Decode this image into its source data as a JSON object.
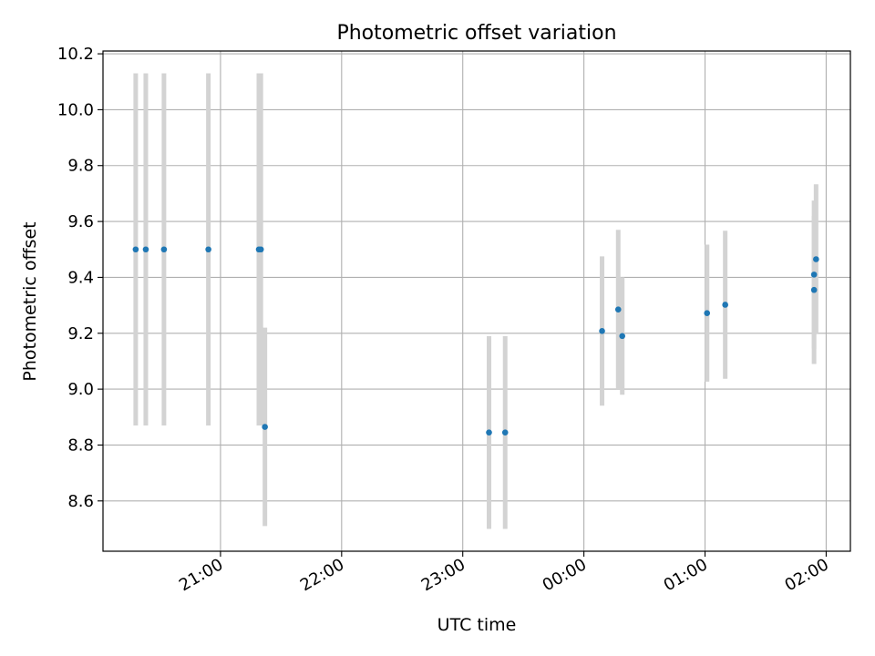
{
  "chart_data": {
    "type": "scatter",
    "title": "Photometric offset variation",
    "xlabel": "UTC time",
    "ylabel": "Photometric offset",
    "x_tick_labels": [
      "21:00",
      "22:00",
      "23:00",
      "00:00",
      "01:00",
      "02:00"
    ],
    "y_tick_labels": [
      "8.6",
      "8.8",
      "9.0",
      "9.2",
      "9.4",
      "9.6",
      "9.8",
      "10.0",
      "10.2"
    ],
    "y_ticks": [
      8.6,
      8.8,
      9.0,
      9.2,
      9.4,
      9.6,
      9.8,
      10.0,
      10.2
    ],
    "x_ticks_hours": [
      21,
      22,
      23,
      24,
      25,
      26
    ],
    "xlim_hours": [
      20.03,
      26.2
    ],
    "ylim": [
      8.42,
      10.21
    ],
    "grid": true,
    "x_tick_rotation": "30 degrees",
    "point_color": "#1f77b4",
    "errorbar_color": "#d3d3d3",
    "series": [
      {
        "points": [
          {
            "t": "20:18",
            "y": 9.5,
            "err": 0.63
          },
          {
            "t": "20:23",
            "y": 9.5,
            "err": 0.63
          },
          {
            "t": "20:32",
            "y": 9.5,
            "err": 0.63
          },
          {
            "t": "20:54",
            "y": 9.5,
            "err": 0.63
          },
          {
            "t": "21:19",
            "y": 9.5,
            "err": 0.63
          },
          {
            "t": "21:20",
            "y": 9.5,
            "err": 0.63
          },
          {
            "t": "21:22",
            "y": 8.865,
            "err": 0.355
          },
          {
            "t": "23:13",
            "y": 8.845,
            "err": 0.345
          },
          {
            "t": "23:21",
            "y": 8.845,
            "err": 0.345
          },
          {
            "t": "00:09",
            "y": 9.208,
            "err": 0.267
          },
          {
            "t": "00:17",
            "y": 9.285,
            "err": 0.285
          },
          {
            "t": "00:19",
            "y": 9.19,
            "err": 0.21
          },
          {
            "t": "01:01",
            "y": 9.272,
            "err": 0.245
          },
          {
            "t": "01:10",
            "y": 9.302,
            "err": 0.265
          },
          {
            "t": "01:54",
            "y": 9.355,
            "err": 0.265
          },
          {
            "t": "01:54",
            "y": 9.41,
            "err": 0.265
          },
          {
            "t": "01:55",
            "y": 9.465,
            "err": 0.268
          }
        ]
      }
    ]
  }
}
